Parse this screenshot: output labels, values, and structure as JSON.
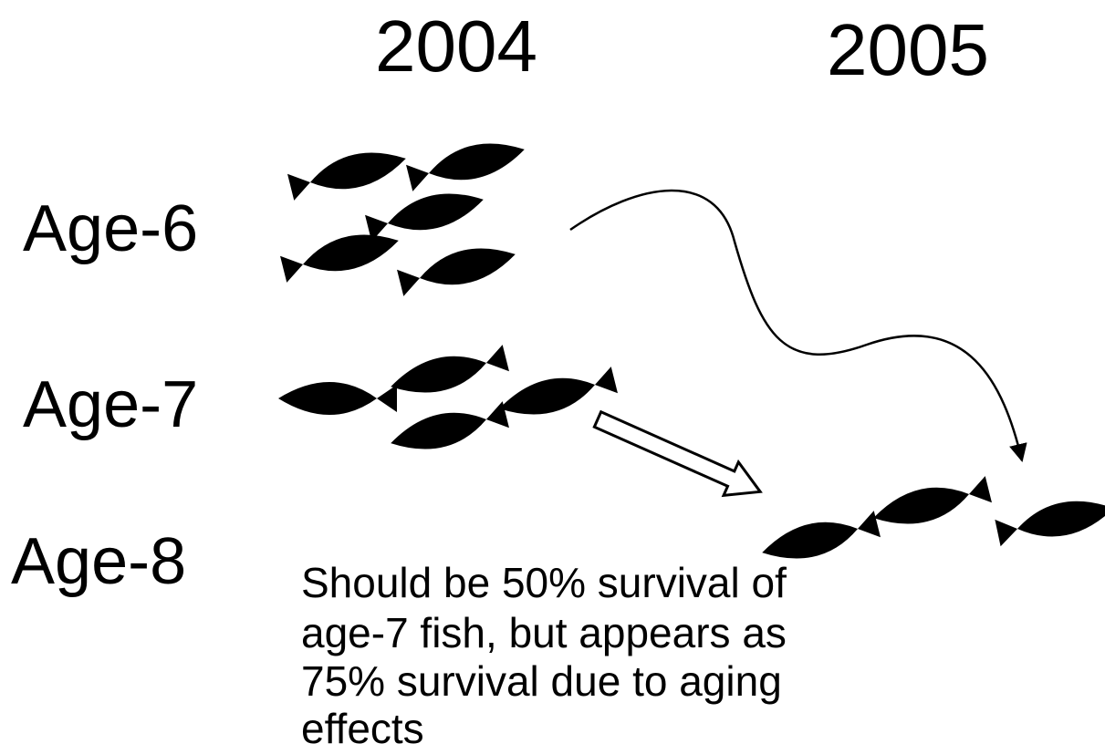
{
  "columns": [
    "2004",
    "2005"
  ],
  "rows": [
    "Age-6",
    "Age-7",
    "Age-8"
  ],
  "note": [
    "Should be 50% survival of",
    "age-7 fish, but appears as",
    "75% survival due to aging",
    "effects"
  ]
}
